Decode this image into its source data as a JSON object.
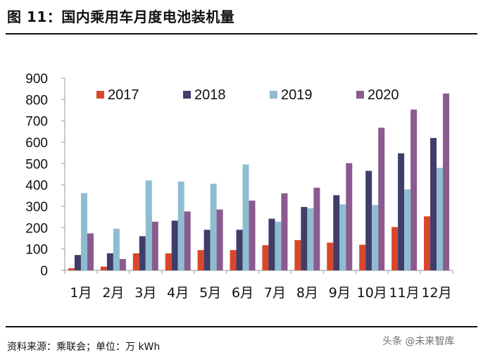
{
  "header": {
    "title": "图 11：国内乘用车月度电池装机量"
  },
  "footer": {
    "source": "资料来源：乘联会；单位：万 kWh",
    "watermark": "头条 @未来智库"
  },
  "colors": {
    "2017": "#d9472b",
    "2018": "#3f3d6b",
    "2019": "#8fbdd0",
    "2020": "#8b5a8f"
  },
  "chart_data": {
    "type": "bar",
    "categories": [
      "1月",
      "2月",
      "3月",
      "4月",
      "5月",
      "6月",
      "7月",
      "8月",
      "9月",
      "10月",
      "11月",
      "12月"
    ],
    "series": [
      {
        "name": "2017",
        "values": [
          10,
          18,
          80,
          80,
          95,
          95,
          118,
          142,
          130,
          120,
          203,
          253
        ]
      },
      {
        "name": "2018",
        "values": [
          72,
          80,
          160,
          233,
          190,
          190,
          242,
          297,
          352,
          466,
          548,
          620
        ]
      },
      {
        "name": "2019",
        "values": [
          362,
          195,
          421,
          416,
          406,
          496,
          228,
          291,
          309,
          306,
          379,
          480
        ]
      },
      {
        "name": "2020",
        "values": [
          173,
          53,
          228,
          276,
          285,
          327,
          361,
          387,
          502,
          668,
          753,
          828
        ]
      }
    ],
    "ylim": [
      0,
      900
    ],
    "yticks": [
      0,
      100,
      200,
      300,
      400,
      500,
      600,
      700,
      800,
      900
    ],
    "legend": "top",
    "grid": false
  }
}
